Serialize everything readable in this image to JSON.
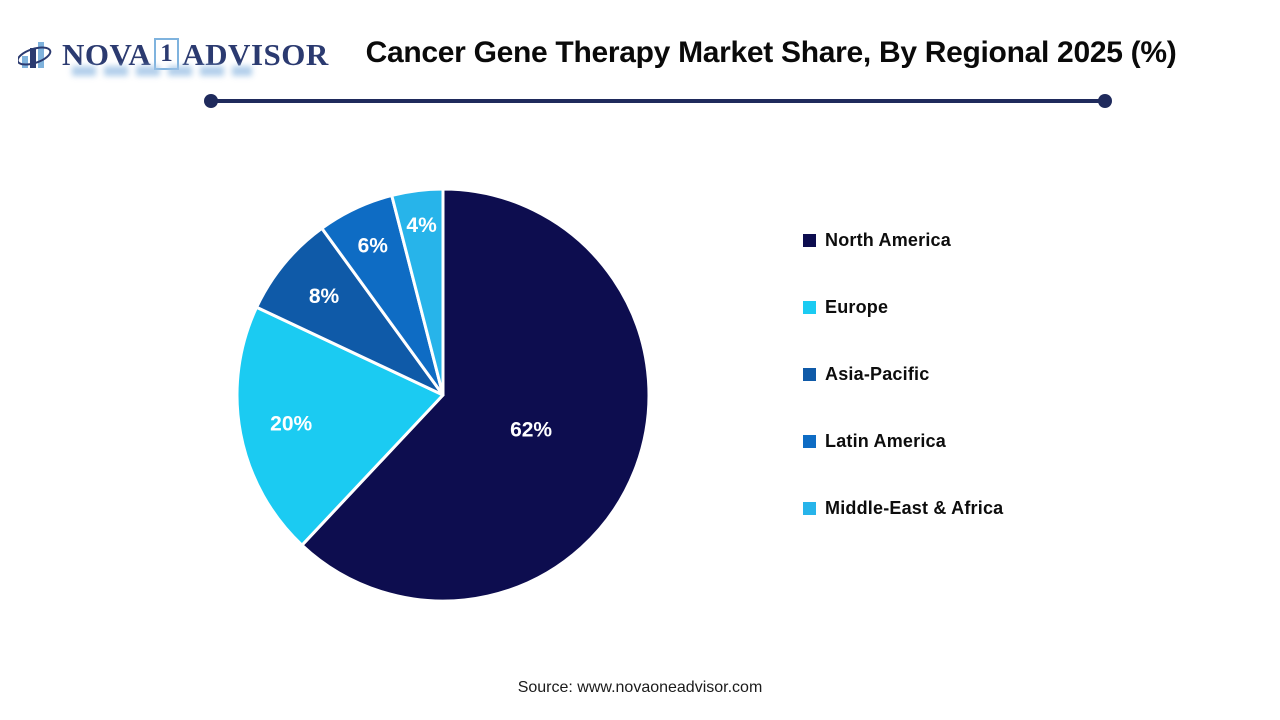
{
  "logo": {
    "brand_prefix": "NOVA",
    "brand_badge": "1",
    "brand_suffix": "ADVISOR"
  },
  "header": {
    "title": "Cancer Gene Therapy Market Share, By Regional 2025 (%)"
  },
  "chart_data": {
    "type": "pie",
    "title": "Cancer Gene Therapy Market Share, By Regional 2025 (%)",
    "unit": "%",
    "categories": [
      "North America",
      "Europe",
      "Asia-Pacific",
      "Latin America",
      "Middle-East & Africa"
    ],
    "values": [
      62,
      20,
      8,
      6,
      4
    ],
    "slice_labels": [
      "62%",
      "20%",
      "8%",
      "6%",
      "4%"
    ],
    "colors": [
      "#0D0D4F",
      "#1BCBF2",
      "#0F5AA8",
      "#0E6CC4",
      "#27B4EA"
    ],
    "start_angle_deg": 0,
    "direction": "clockwise",
    "legend_position": "right",
    "slice_label_color": "#FFFFFF",
    "separator_color": "#FFFFFF"
  },
  "footer": {
    "source": "Source: www.novaoneadvisor.com"
  },
  "colors": {
    "accent_navy": "#1F2A5C",
    "title_text": "#0A0A0A",
    "logo_navy": "#2B3A70",
    "logo_lightblue": "#7FB2DC"
  }
}
